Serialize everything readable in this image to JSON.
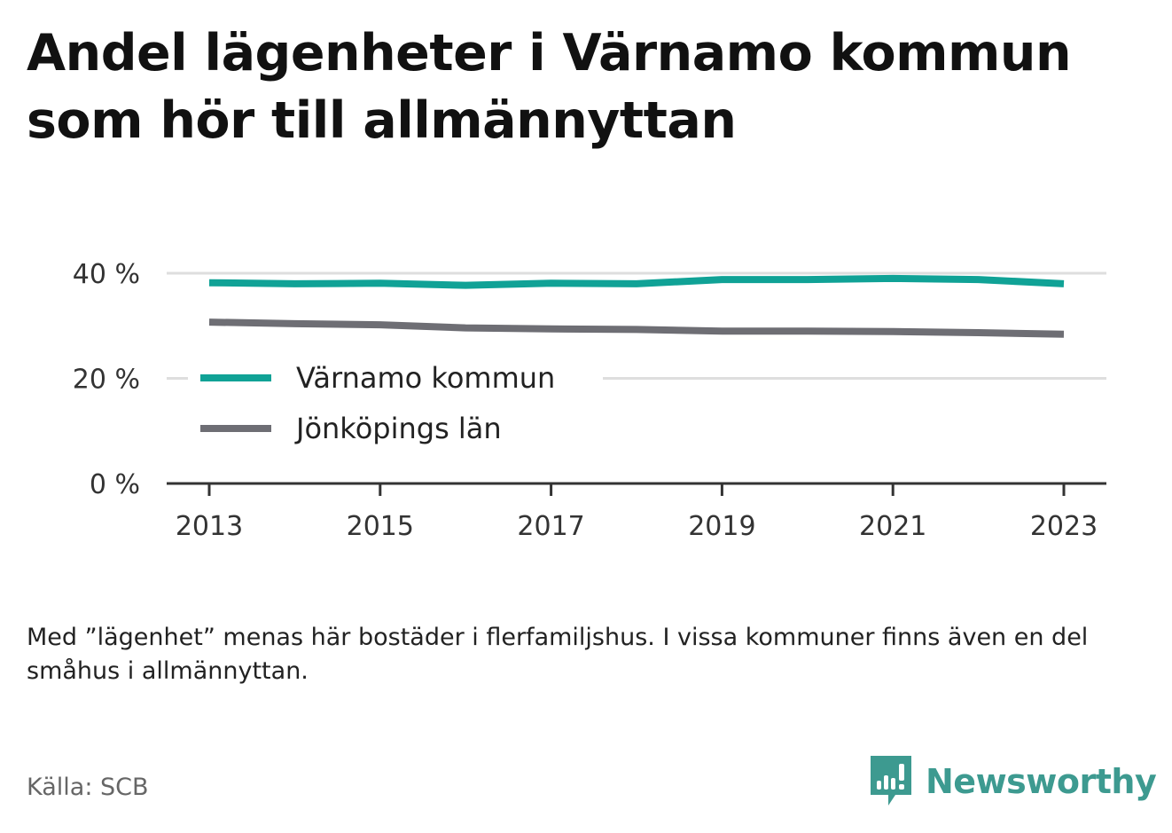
{
  "title_lines": [
    "Andel lägenheter i Värnamo kommun",
    "som hör till allmännyttan"
  ],
  "note": "Med ”lägenhet” menas här bostäder i flerfamiljshus. I vissa kommuner finns även en del småhus i allmännyttan.",
  "source": "Källa: SCB",
  "brand": "Newsworthy",
  "colors": {
    "varnamo": "#10a296",
    "lan": "#6e6e74",
    "grid": "#dedede",
    "axis": "#333333",
    "brand": "#3d9a90"
  },
  "chart_data": {
    "type": "line",
    "x": [
      2013,
      2014,
      2015,
      2016,
      2017,
      2018,
      2019,
      2020,
      2021,
      2022,
      2023
    ],
    "xticks": [
      2013,
      2015,
      2017,
      2019,
      2021,
      2023
    ],
    "ylim": [
      0,
      40
    ],
    "yticks": [
      {
        "value": 0,
        "label": "0 %"
      },
      {
        "value": 20,
        "label": "20 %"
      },
      {
        "value": 40,
        "label": "40 %"
      }
    ],
    "grid": true,
    "legend_position": "left",
    "series": [
      {
        "name": "Värnamo kommun",
        "color": "#10a296",
        "values": [
          38.2,
          38.0,
          38.1,
          37.7,
          38.1,
          38.0,
          38.8,
          38.8,
          39.0,
          38.8,
          38.0
        ]
      },
      {
        "name": "Jönköpings län",
        "color": "#6e6e74",
        "values": [
          30.7,
          30.4,
          30.2,
          29.6,
          29.4,
          29.3,
          29.0,
          29.0,
          28.9,
          28.7,
          28.4
        ]
      }
    ]
  }
}
